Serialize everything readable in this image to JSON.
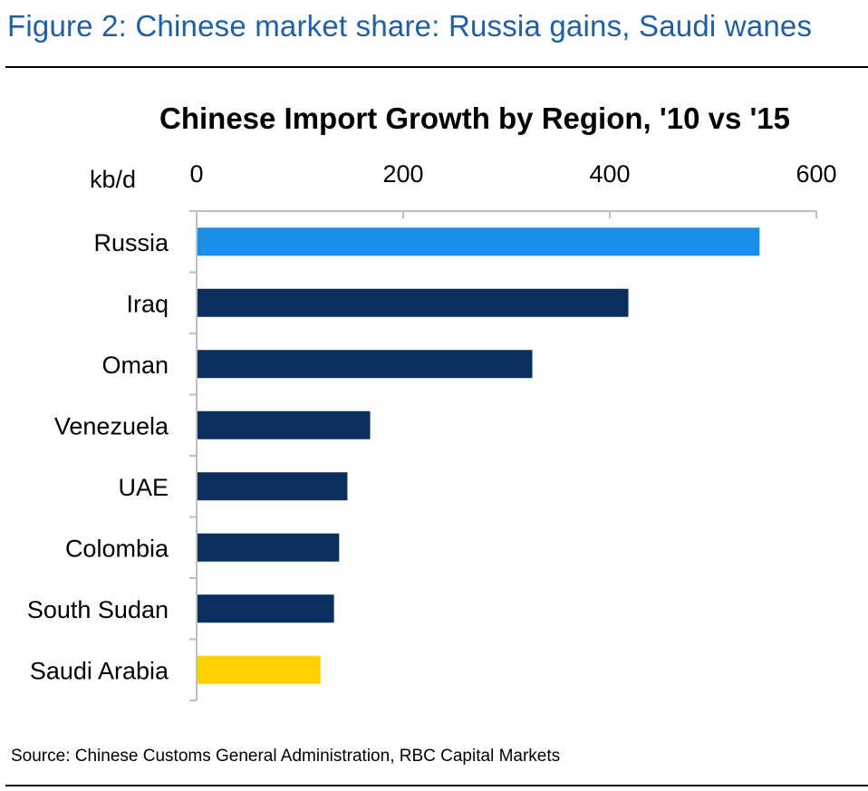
{
  "figure_title": "Figure 2: Chinese market share: Russia gains, Saudi wanes",
  "source": "Source: Chinese Customs General Administration, RBC Capital Markets",
  "chart_data": {
    "type": "bar",
    "orientation": "horizontal",
    "title": "Chinese Import Growth by Region, '10 vs '15",
    "unit_label": "kb/d",
    "xlim": [
      0,
      600
    ],
    "x_ticks": [
      0,
      200,
      400,
      600
    ],
    "x_axis_position": "top",
    "grid": false,
    "legend": "none",
    "categories": [
      "Russia",
      "Iraq",
      "Oman",
      "Venezuela",
      "UAE",
      "Colombia",
      "South Sudan",
      "Saudi Arabia"
    ],
    "values": [
      545,
      418,
      325,
      168,
      146,
      138,
      133,
      120
    ],
    "colors": [
      "#1a8fea",
      "#0a2f5e",
      "#0a2f5e",
      "#0a2f5e",
      "#0a2f5e",
      "#0a2f5e",
      "#0a2f5e",
      "#ffd100"
    ]
  }
}
